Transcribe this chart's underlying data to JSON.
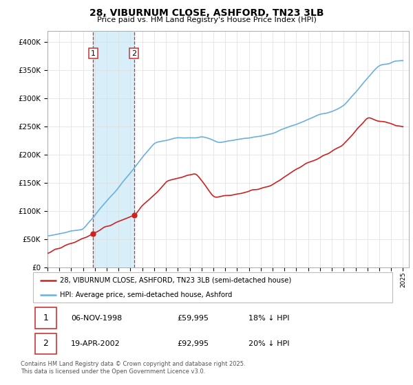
{
  "title": "28, VIBURNUM CLOSE, ASHFORD, TN23 3LB",
  "subtitle": "Price paid vs. HM Land Registry's House Price Index (HPI)",
  "footer": "Contains HM Land Registry data © Crown copyright and database right 2025.\nThis data is licensed under the Open Government Licence v3.0.",
  "legend_line1": "28, VIBURNUM CLOSE, ASHFORD, TN23 3LB (semi-detached house)",
  "legend_line2": "HPI: Average price, semi-detached house, Ashford",
  "table": [
    {
      "num": "1",
      "date": "06-NOV-1998",
      "price": "£59,995",
      "hpi": "18% ↓ HPI"
    },
    {
      "num": "2",
      "date": "19-APR-2002",
      "price": "£92,995",
      "hpi": "20% ↓ HPI"
    }
  ],
  "sale1_year": 1998.85,
  "sale1_price": 59995,
  "sale2_year": 2002.3,
  "sale2_price": 92995,
  "hpi_color": "#6ab0de",
  "price_color": "#cc2222",
  "vline_color": "#cc3333",
  "shaded_color": "#d8eef8",
  "ylim_max": 420000,
  "xlim_min": 1995,
  "xlim_max": 2025.5,
  "background_color": "#ffffff",
  "grid_color": "#dddddd"
}
